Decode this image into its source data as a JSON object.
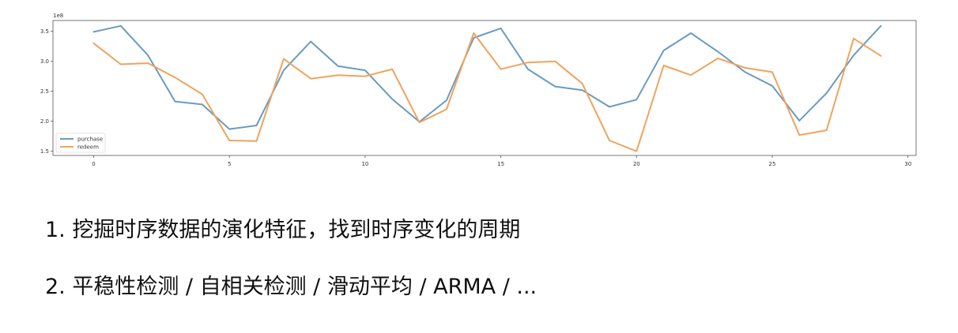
{
  "chart_data": {
    "type": "line",
    "title": "",
    "xlabel": "",
    "ylabel": "",
    "offset_text": "1e8",
    "xlim": [
      -1.5,
      30.3
    ],
    "ylim": [
      1.43,
      3.68
    ],
    "x_ticks": [
      0,
      5,
      10,
      15,
      20,
      25,
      30
    ],
    "x_tick_labels": [
      "0",
      "5",
      "10",
      "15",
      "20",
      "25",
      "30"
    ],
    "y_ticks": [
      1.5,
      2.0,
      2.5,
      3.0,
      3.5
    ],
    "y_tick_labels": [
      "1.5",
      "2.0",
      "2.5",
      "3.0",
      "3.5"
    ],
    "grid": false,
    "legend_position": "lower-left",
    "x": [
      0,
      1,
      2,
      3,
      4,
      5,
      6,
      7,
      8,
      9,
      10,
      11,
      12,
      13,
      14,
      15,
      16,
      17,
      18,
      19,
      20,
      21,
      22,
      23,
      24,
      25,
      26,
      27,
      28,
      29
    ],
    "series": [
      {
        "name": "purchase",
        "color": "#6a9bc3",
        "values": [
          3.49,
          3.59,
          3.1,
          2.33,
          2.28,
          1.87,
          1.93,
          2.85,
          3.33,
          2.92,
          2.85,
          2.37,
          1.99,
          2.35,
          3.39,
          3.55,
          2.87,
          2.58,
          2.52,
          2.24,
          2.36,
          3.18,
          3.47,
          3.16,
          2.82,
          2.59,
          2.01,
          2.47,
          3.1,
          3.59
        ]
      },
      {
        "name": "redeem",
        "color": "#f0a35c",
        "values": [
          3.3,
          2.95,
          2.97,
          2.73,
          2.45,
          1.68,
          1.67,
          3.04,
          2.71,
          2.77,
          2.75,
          2.87,
          1.98,
          2.2,
          3.47,
          2.87,
          2.98,
          3.0,
          2.63,
          1.68,
          1.5,
          2.93,
          2.77,
          3.05,
          2.89,
          2.82,
          1.77,
          1.85,
          3.38,
          3.09
        ]
      }
    ]
  },
  "bullets": [
    "1. 挖掘时序数据的演化特征，找到时序变化的周期",
    "2. 平稳性检测 / 自相关检测 / 滑动平均 / ARMA / ..."
  ]
}
